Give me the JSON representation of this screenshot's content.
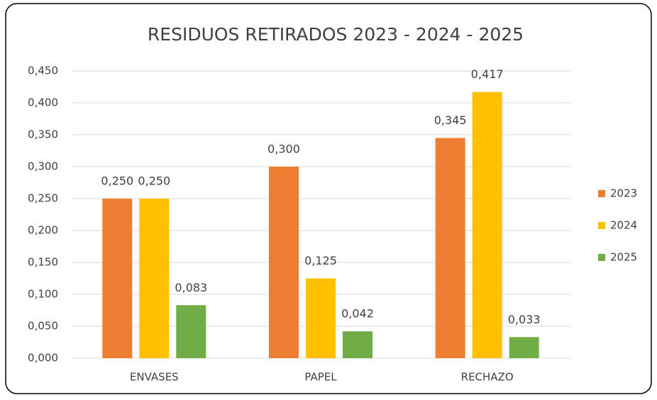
{
  "chart_data": {
    "type": "bar",
    "title": "RESIDUOS RETIRADOS 2023 - 2024 - 2025",
    "categories": [
      "ENVASES",
      "PAPEL",
      "RECHAZO"
    ],
    "series": [
      {
        "name": "2023",
        "color": "#ED7D31",
        "values": [
          0.25,
          0.3,
          0.345
        ],
        "value_labels": [
          "0,250",
          "0,300",
          "0,345"
        ]
      },
      {
        "name": "2024",
        "color": "#FFC000",
        "values": [
          0.25,
          0.125,
          0.417
        ],
        "value_labels": [
          "0,250",
          "0,125",
          "0,417"
        ]
      },
      {
        "name": "2025",
        "color": "#70AD47",
        "values": [
          0.083,
          0.042,
          0.033
        ],
        "value_labels": [
          "0,083",
          "0,042",
          "0,033"
        ]
      }
    ],
    "ylim": [
      0,
      0.45
    ],
    "yticks": [
      {
        "value": 0,
        "label": "0,000"
      },
      {
        "value": 0.05,
        "label": "0,050"
      },
      {
        "value": 0.1,
        "label": "0,100"
      },
      {
        "value": 0.15,
        "label": "0,150"
      },
      {
        "value": 0.2,
        "label": "0,200"
      },
      {
        "value": 0.25,
        "label": "0,250"
      },
      {
        "value": 0.3,
        "label": "0,300"
      },
      {
        "value": 0.35,
        "label": "0,350"
      },
      {
        "value": 0.4,
        "label": "0,400"
      },
      {
        "value": 0.45,
        "label": "0,450"
      }
    ],
    "grid": true,
    "legend": "right"
  }
}
